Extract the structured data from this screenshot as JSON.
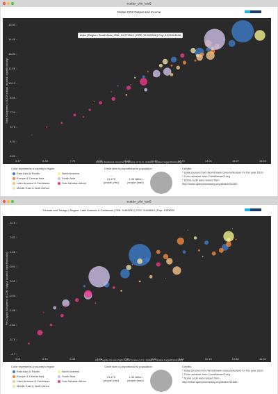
{
  "windows": [
    {
      "title": "scatter_plot_test5"
    },
    {
      "title": "scatter_plot_test5"
    }
  ],
  "chart_data": [
    {
      "type": "scatter",
      "title": "Global CO2 Output and Income",
      "x_label": "Gross-National-Income (millions of U.S. dollars, scaled logarithmically)",
      "y_label": "Total Kilograms of CO2 output (scaled logarithmically)",
      "tooltip": "India | Region: South Asia | GNI: 14.274514 | CO2: 14.515398 | Pop: 1224514648",
      "xlim": [
        5.17,
        16.53
      ],
      "xticks": [
        5.17,
        6.43,
        {
          "value": 7.7,
          "label": "7.70"
        },
        8.96,
        10.22,
        11.49,
        12.75,
        14.01,
        15.27,
        16.53
      ],
      "ylim": [
        2.89,
        15.93
      ],
      "yticks": [
        2.89,
        4.34,
        5.78,
        7.24,
        8.68,
        10.13,
        11.58,
        13.03,
        14.48,
        15.93
      ],
      "color_legend_title": "Color represents a country's region",
      "size_legend": {
        "title": "Circle size is proportional to population",
        "min": {
          "value": 21470,
          "label": "21,470"
        },
        "min_note": "people (min)",
        "max": {
          "value": 1340000000,
          "label": "1.34 billion"
        },
        "max_note": "people (max)"
      },
      "credits": [
        "Credits:",
        "* Data sourced from World Bank Data Indicators for the year 2010",
        "* Color scheme from ColorBrewer2.org",
        "* Some code was reused from",
        "http://www.openprocessing.org/sketch/51382"
      ],
      "series": [
        {
          "name": "East Asia & Pacific",
          "color": "#3d7cc9",
          "x": [
            15.6,
            15.1,
            13.6,
            12.4,
            11.0,
            14.0,
            9.8
          ],
          "y": [
            15.3,
            14.1,
            13.2,
            12.5,
            10.8,
            13.5,
            9.9
          ],
          "sizes": [
            1340000000,
            127000000,
            240000000,
            89000000,
            20000000,
            50000000,
            6000000
          ]
        },
        {
          "name": "Europe & Central Asia",
          "color": "#f0883e",
          "x": [
            14.4,
            14.2,
            13.7,
            14.0,
            12.3,
            11.2,
            10.4,
            12.9,
            13.4,
            9.5
          ],
          "y": [
            13.8,
            13.3,
            13.0,
            14.1,
            11.9,
            11.3,
            10.0,
            12.2,
            12.4,
            9.3
          ],
          "sizes": [
            82000000,
            65000000,
            46000000,
            140000000,
            10000000,
            5000000,
            3000000,
            38000000,
            11000000,
            2000000
          ]
        },
        {
          "name": "Latin America & Caribbean",
          "color": "#f6c487",
          "x": [
            14.1,
            13.6,
            12.6,
            11.5,
            10.2,
            8.7,
            12.3
          ],
          "y": [
            12.9,
            12.7,
            11.7,
            10.9,
            9.0,
            8.3,
            11.0
          ],
          "sizes": [
            195000000,
            113000000,
            40000000,
            13000000,
            9000000,
            500000,
            29000000
          ]
        },
        {
          "name": "Middle East & North Africa",
          "color": "#e9e2a8",
          "x": [
            13.3,
            13.5,
            11.8,
            10.6,
            12.0
          ],
          "y": [
            13.4,
            12.9,
            11.9,
            10.7,
            12.3
          ],
          "sizes": [
            74000000,
            27000000,
            35000000,
            7000000,
            80000000
          ]
        },
        {
          "name": "North America",
          "color": "#f3f08f",
          "x": [
            16.4,
            14.2
          ],
          "y": [
            14.9,
            13.6
          ],
          "sizes": [
            309000000,
            34000000
          ]
        },
        {
          "name": "South Asia",
          "color": "#cdbfe6",
          "x": [
            14.3,
            11.6,
            11.1,
            12.1
          ],
          "y": [
            14.5,
            11.1,
            9.5,
            11.3
          ],
          "sizes": [
            1220000000,
            150000000,
            30000000,
            174000000
          ]
        },
        {
          "name": "Sub-Saharan Africa",
          "color": "#e8388a",
          "x": [
            5.8,
            6.5,
            7.2,
            7.8,
            8.5,
            9.0,
            9.6,
            10.3,
            11.0,
            12.8,
            8.2
          ],
          "y": [
            5.0,
            5.8,
            6.2,
            7.0,
            7.5,
            8.2,
            8.6,
            9.7,
            10.3,
            12.9,
            6.8
          ],
          "sizes": [
            1000000,
            5000000,
            10000000,
            20000000,
            15000000,
            30000000,
            40000000,
            50000000,
            160000000,
            50000000,
            8000000
          ]
        }
      ]
    },
    {
      "type": "scatter",
      "title": "Global CO2 Output and Income",
      "x_label": "Per-Capita Gross-National-Income (U.S. dollars, scaled logarithmically)",
      "y_label": "Per-Capita Kilograms of CO2 output (scaled logarithmically)",
      "tooltip": "Trinidad and Tobago | Region: Latin America & Caribbean | GNI: 9.493251 | CO2: 3.643814 | Pop: 1339000",
      "xlim": [
        5.01,
        11.62
      ],
      "xticks": [
        5.01,
        5.74,
        6.48,
        7.21,
        7.95,
        8.68,
        9.42,
        10.15,
        10.88,
        11.62
      ],
      "ylim": [
        -4.7,
        3.76
      ],
      "yticks": [
        -4.7,
        -3.76,
        -2.82,
        -1.88,
        -0.94,
        {
          "value": 0,
          "label": "0.00"
        },
        0.94,
        1.88,
        2.82,
        3.76
      ],
      "color_legend_title": "Color represents a country's region",
      "size_legend": {
        "title": "Circle size is proportional to population",
        "min": {
          "value": 21470,
          "label": "21,470"
        },
        "min_note": "people (min)",
        "max": {
          "value": 1340000000,
          "label": "1.34 billion"
        },
        "max_note": "people (max)"
      },
      "credits": [
        "Credits:",
        "* Data sourced from World Bank Data Indicators for the year 2010",
        "* Color scheme from ColorBrewer2.org",
        "* Some code was reused from",
        "http://www.openprocessing.org/sketch/51382"
      ],
      "series": [
        {
          "name": "East Asia & Pacific",
          "color": "#3d7cc9",
          "x": [
            8.3,
            10.6,
            7.9,
            8.5,
            7.4,
            10.1,
            9.5,
            6.8
          ],
          "y": [
            1.7,
            2.2,
            0.5,
            1.4,
            -0.2,
            2.5,
            1.9,
            -0.3
          ],
          "sizes": [
            1340000000,
            127000000,
            240000000,
            69000000,
            89000000,
            49000000,
            28000000,
            14000000
          ]
        },
        {
          "name": "Europe & Central Asia",
          "color": "#f0883e",
          "x": [
            10.7,
            10.5,
            9.4,
            9.0,
            8.1,
            10.9,
            10.3,
            9.9,
            8.8
          ],
          "y": [
            2.4,
            2.0,
            2.6,
            1.6,
            1.1,
            2.7,
            1.8,
            2.0,
            1.9
          ],
          "sizes": [
            82000000,
            65000000,
            140000000,
            73000000,
            3000000,
            5000000,
            46000000,
            11000000,
            45000000
          ]
        },
        {
          "name": "Latin America & Caribbean",
          "color": "#f6c487",
          "x": [
            9.3,
            9.1,
            8.6,
            8.3,
            7.8,
            9.6,
            10.0
          ],
          "y": [
            0.7,
            1.3,
            0.3,
            0.0,
            -0.6,
            3.3,
            1.6
          ],
          "sizes": [
            195000000,
            113000000,
            29000000,
            10000000,
            9000000,
            1300000,
            4000000
          ]
        },
        {
          "name": "Middle East & North Africa",
          "color": "#e9e2a8",
          "x": [
            8.3,
            9.8,
            8.0,
            10.8
          ],
          "y": [
            1.3,
            2.8,
            0.9,
            3.4
          ],
          "sizes": [
            80000000,
            27000000,
            74000000,
            1800000
          ]
        },
        {
          "name": "North America",
          "color": "#f3f08f",
          "x": [
            10.7,
            10.7
          ],
          "y": [
            2.9,
            2.7
          ],
          "sizes": [
            309000000,
            34000000
          ]
        },
        {
          "name": "South Asia",
          "color": "#cdbfe6",
          "x": [
            7.2,
            6.3,
            6.9,
            6.0
          ],
          "y": [
            0.3,
            -1.4,
            -0.9,
            -1.7
          ],
          "sizes": [
            1220000000,
            150000000,
            174000000,
            30000000
          ]
        },
        {
          "name": "Sub-Saharan Africa",
          "color": "#e8388a",
          "x": [
            5.3,
            5.6,
            5.9,
            6.2,
            6.3,
            6.6,
            6.9,
            7.1,
            7.6,
            8.8,
            9.0,
            5.7
          ],
          "y": [
            -4.0,
            -3.3,
            -2.8,
            -2.2,
            -1.6,
            -1.2,
            -0.8,
            -1.4,
            -0.4,
            1.1,
            0.2,
            -2.0
          ],
          "sizes": [
            10000000,
            80000000,
            16000000,
            30000000,
            10000000,
            40000000,
            160000000,
            5000000,
            20000000,
            50000000,
            2000000,
            4000000
          ]
        }
      ]
    }
  ]
}
